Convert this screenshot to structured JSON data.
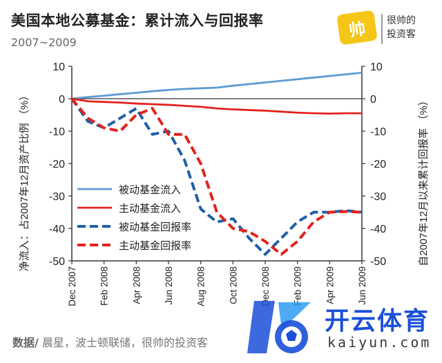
{
  "header": {
    "title": "美国本地公募基金：累计流入与回报率",
    "subtitle": "2007~2009"
  },
  "brand": {
    "mark_text": "帅",
    "line1": "很帅的",
    "line2": "投资客"
  },
  "footer": {
    "source_label": "数据/",
    "source_text": " 晨星，波士顿联储，很帅的投资客"
  },
  "watermark": {
    "text1": "开云体育",
    "text2": "kaiyun.com"
  },
  "chart_data": {
    "type": "line",
    "x": [
      "Dec 2007",
      "Jan 2008",
      "Feb 2008",
      "Mar 2008",
      "Apr 2008",
      "May 2008",
      "Jun 2008",
      "Jul 2008",
      "Aug 2008",
      "Sep 2008",
      "Oct 2008",
      "Nov 2008",
      "Dec 2008",
      "Jan 2009",
      "Feb 2009",
      "Mar 2009",
      "Apr 2009",
      "May 2009",
      "Jun 2009"
    ],
    "x_tick_labels": [
      "Dec 2007",
      "Feb 2008",
      "Apr 2008",
      "Jun 2008",
      "Aug 2008",
      "Oct 2008",
      "Dec 2008",
      "Feb 2009",
      "Apr 2009",
      "Jun 2009"
    ],
    "x_tick_indices": [
      0,
      2,
      4,
      6,
      8,
      10,
      12,
      14,
      16,
      18
    ],
    "ylabel_left": "净流入：占2007年12月资产比例 （%）",
    "ylabel_right": "自2007年12月以来累计回报率 （%）",
    "ylim": [
      -50,
      10
    ],
    "yticks": [
      10,
      0,
      -10,
      -20,
      -30,
      -40,
      -50
    ],
    "grid": false,
    "legend_position": "lower-left",
    "series": [
      {
        "name": "被动基金流入",
        "color": "#5b9bd5",
        "style": "solid",
        "values": [
          0,
          0.5,
          0.9,
          1.4,
          1.8,
          2.3,
          2.7,
          3.0,
          3.2,
          3.4,
          4.0,
          4.5,
          5.0,
          5.5,
          6.0,
          6.5,
          7.0,
          7.5,
          8.0
        ]
      },
      {
        "name": "主动基金流入",
        "color": "#e4211c",
        "style": "solid",
        "values": [
          0,
          -0.8,
          -1.0,
          -1.2,
          -1.5,
          -1.7,
          -1.9,
          -2.2,
          -2.5,
          -3.0,
          -3.3,
          -3.5,
          -3.7,
          -4.0,
          -4.3,
          -4.5,
          -4.6,
          -4.5,
          -4.5
        ]
      },
      {
        "name": "被动基金回报率",
        "color": "#1f5fa8",
        "style": "dashed",
        "values": [
          0,
          -7,
          -9,
          -6,
          -3,
          -11,
          -10,
          -19,
          -34,
          -38,
          -37,
          -43,
          -48,
          -43,
          -38,
          -35,
          -35,
          -34.5,
          -35
        ]
      },
      {
        "name": "主动基金回报率",
        "color": "#e4211c",
        "style": "dashed",
        "values": [
          0,
          -6,
          -9,
          -10,
          -5,
          -3,
          -11,
          -11,
          -20,
          -35,
          -40,
          -41,
          -44,
          -48,
          -44,
          -38,
          -35,
          -34.8,
          -35
        ]
      }
    ]
  }
}
